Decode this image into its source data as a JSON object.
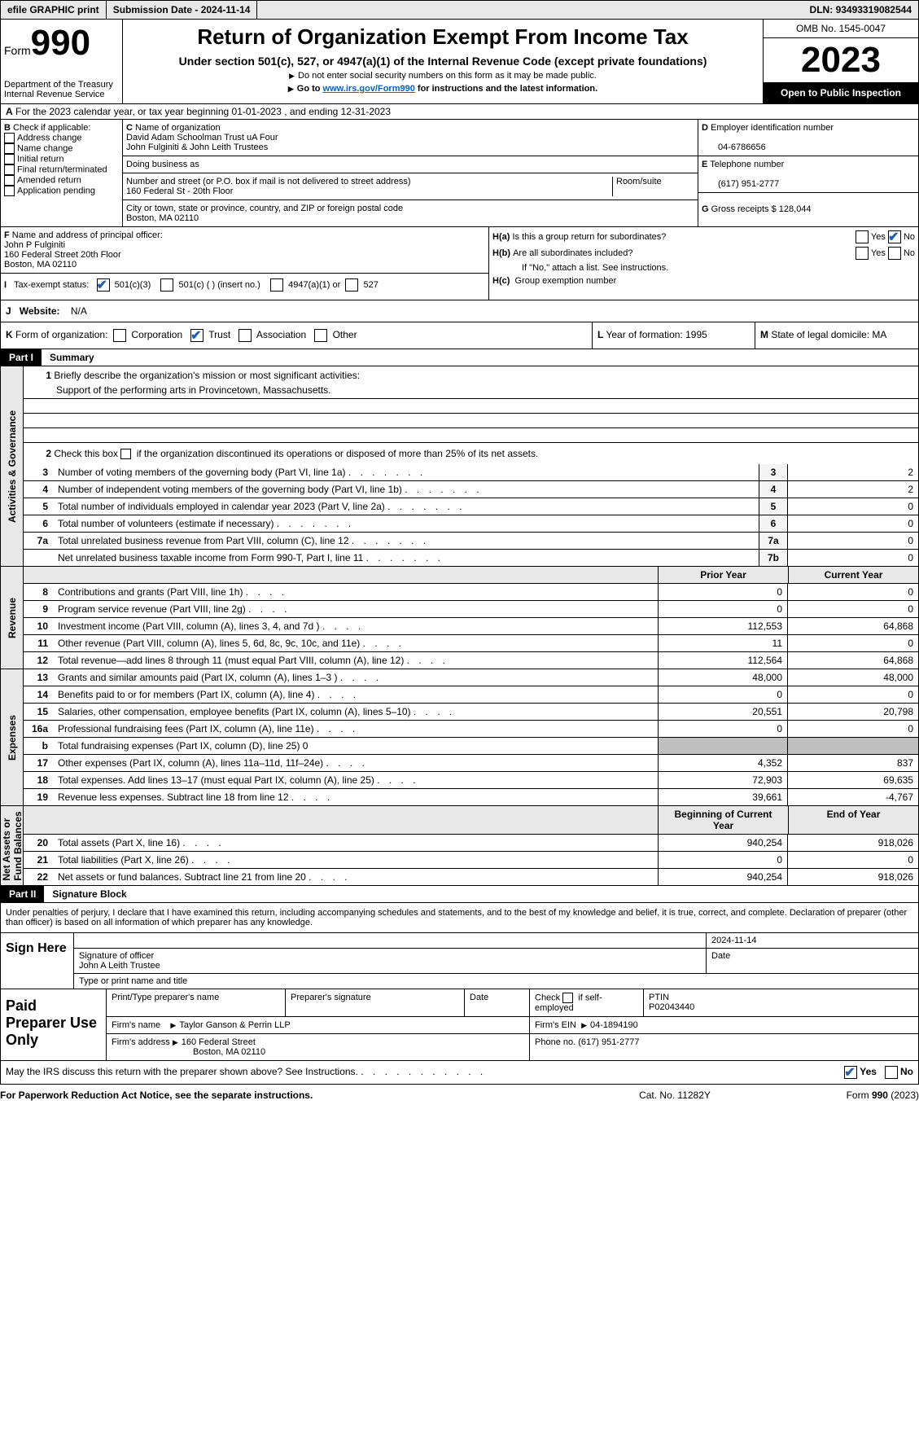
{
  "top": {
    "efile": "efile GRAPHIC print",
    "submission": "Submission Date - 2024-11-14",
    "dln_label": "DLN:",
    "dln": "93493319082544"
  },
  "header": {
    "form_label": "Form",
    "form_num": "990",
    "dept": "Department of the Treasury\nInternal Revenue Service",
    "title": "Return of Organization Exempt From Income Tax",
    "sub1": "Under section 501(c), 527, or 4947(a)(1) of the Internal Revenue Code (except private foundations)",
    "sub2": "Do not enter social security numbers on this form as it may be made public.",
    "sub3_pre": "Go to ",
    "sub3_link": "www.irs.gov/Form990",
    "sub3_post": " for instructions and the latest information.",
    "omb": "OMB No. 1545-0047",
    "year": "2023",
    "inspection": "Open to Public Inspection"
  },
  "section_a": "For the 2023 calendar year, or tax year beginning 01-01-2023    , and ending 12-31-2023",
  "box_b": {
    "label": "Check if applicable:",
    "items": [
      "Address change",
      "Name change",
      "Initial return",
      "Final return/terminated",
      "Amended return",
      "Application pending"
    ]
  },
  "box_c": {
    "name_label": "Name of organization",
    "name1": "David Adam Schoolman Trust uA Four",
    "name2": "John Fulginiti & John Leith Trustees",
    "dba_label": "Doing business as",
    "addr_label": "Number and street (or P.O. box if mail is not delivered to street address)",
    "room_label": "Room/suite",
    "addr": "160 Federal St - 20th Floor",
    "city_label": "City or town, state or province, country, and ZIP or foreign postal code",
    "city": "Boston, MA  02110"
  },
  "box_d": {
    "ein_label": "Employer identification number",
    "ein": "04-6786656",
    "phone_label": "Telephone number",
    "phone": "(617) 951-2777",
    "gross_label": "Gross receipts $",
    "gross": "128,044"
  },
  "box_f": {
    "label": "Name and address of principal officer:",
    "name": "John P Fulginiti",
    "addr1": "160 Federal Street 20th Floor",
    "addr2": "Boston, MA  02110"
  },
  "box_h": {
    "ha": "Is this a group return for subordinates?",
    "hb": "Are all subordinates included?",
    "note": "If \"No,\" attach a list. See instructions.",
    "hc": "Group exemption number",
    "yes": "Yes",
    "no": "No"
  },
  "status": {
    "label": "Tax-exempt status:",
    "opt1": "501(c)(3)",
    "opt2": "501(c) (   ) (insert no.)",
    "opt3": "4947(a)(1) or",
    "opt4": "527"
  },
  "j": {
    "label": "Website:",
    "val": "N/A"
  },
  "k": {
    "label": "Form of organization:",
    "opts": [
      "Corporation",
      "Trust",
      "Association",
      "Other"
    ]
  },
  "l": {
    "label": "Year of formation:",
    "val": "1995"
  },
  "m": {
    "label": "State of legal domicile:",
    "val": "MA"
  },
  "parts": {
    "p1": "Part I",
    "p1_title": "Summary",
    "p2": "Part II",
    "p2_title": "Signature Block"
  },
  "vlabels": {
    "gov": "Activities & Governance",
    "rev": "Revenue",
    "exp": "Expenses",
    "net": "Net Assets or\nFund Balances"
  },
  "summary": {
    "l1": "Briefly describe the organization's mission or most significant activities:",
    "mission": "Support of the performing arts in Provincetown, Massachusetts.",
    "l2": "Check this box       if the organization discontinued its operations or disposed of more than 25% of its net assets.",
    "rows_gov": [
      {
        "n": "3",
        "d": "Number of voting members of the governing body (Part VI, line 1a)",
        "col": "3",
        "v": "2"
      },
      {
        "n": "4",
        "d": "Number of independent voting members of the governing body (Part VI, line 1b)",
        "col": "4",
        "v": "2"
      },
      {
        "n": "5",
        "d": "Total number of individuals employed in calendar year 2023 (Part V, line 2a)",
        "col": "5",
        "v": "0"
      },
      {
        "n": "6",
        "d": "Total number of volunteers (estimate if necessary)",
        "col": "6",
        "v": "0"
      },
      {
        "n": "7a",
        "d": "Total unrelated business revenue from Part VIII, column (C), line 12",
        "col": "7a",
        "v": "0"
      },
      {
        "n": "",
        "d": "Net unrelated business taxable income from Form 990-T, Part I, line 11",
        "col": "7b",
        "v": "0"
      }
    ],
    "col_hdr_prior": "Prior Year",
    "col_hdr_current": "Current Year",
    "rows_rev": [
      {
        "n": "8",
        "d": "Contributions and grants (Part VIII, line 1h)",
        "p": "0",
        "c": "0"
      },
      {
        "n": "9",
        "d": "Program service revenue (Part VIII, line 2g)",
        "p": "0",
        "c": "0"
      },
      {
        "n": "10",
        "d": "Investment income (Part VIII, column (A), lines 3, 4, and 7d )",
        "p": "112,553",
        "c": "64,868"
      },
      {
        "n": "11",
        "d": "Other revenue (Part VIII, column (A), lines 5, 6d, 8c, 9c, 10c, and 11e)",
        "p": "11",
        "c": "0"
      },
      {
        "n": "12",
        "d": "Total revenue—add lines 8 through 11 (must equal Part VIII, column (A), line 12)",
        "p": "112,564",
        "c": "64,868"
      }
    ],
    "rows_exp": [
      {
        "n": "13",
        "d": "Grants and similar amounts paid (Part IX, column (A), lines 1–3 )",
        "p": "48,000",
        "c": "48,000"
      },
      {
        "n": "14",
        "d": "Benefits paid to or for members (Part IX, column (A), line 4)",
        "p": "0",
        "c": "0"
      },
      {
        "n": "15",
        "d": "Salaries, other compensation, employee benefits (Part IX, column (A), lines 5–10)",
        "p": "20,551",
        "c": "20,798"
      },
      {
        "n": "16a",
        "d": "Professional fundraising fees (Part IX, column (A), line 11e)",
        "p": "0",
        "c": "0"
      },
      {
        "n": "b",
        "d": "Total fundraising expenses (Part IX, column (D), line 25) 0",
        "p": "",
        "c": "",
        "shade": true
      },
      {
        "n": "17",
        "d": "Other expenses (Part IX, column (A), lines 11a–11d, 11f–24e)",
        "p": "4,352",
        "c": "837"
      },
      {
        "n": "18",
        "d": "Total expenses. Add lines 13–17 (must equal Part IX, column (A), line 25)",
        "p": "72,903",
        "c": "69,635"
      },
      {
        "n": "19",
        "d": "Revenue less expenses. Subtract line 18 from line 12",
        "p": "39,661",
        "c": "-4,767"
      }
    ],
    "col_hdr_begin": "Beginning of Current Year",
    "col_hdr_end": "End of Year",
    "rows_net": [
      {
        "n": "20",
        "d": "Total assets (Part X, line 16)",
        "p": "940,254",
        "c": "918,026"
      },
      {
        "n": "21",
        "d": "Total liabilities (Part X, line 26)",
        "p": "0",
        "c": "0"
      },
      {
        "n": "22",
        "d": "Net assets or fund balances. Subtract line 21 from line 20",
        "p": "940,254",
        "c": "918,026"
      }
    ]
  },
  "sig_declaration": "Under penalties of perjury, I declare that I have examined this return, including accompanying schedules and statements, and to the best of my knowledge and belief, it is true, correct, and complete. Declaration of preparer (other than officer) is based on all information of which preparer has any knowledge.",
  "sign": {
    "here": "Sign Here",
    "sig_officer": "Signature of officer",
    "officer": "John A Leith Trustee",
    "type_name": "Type or print name and title",
    "date_label": "Date",
    "date": "2024-11-14"
  },
  "prep": {
    "title": "Paid Preparer Use Only",
    "print_name": "Print/Type preparer's name",
    "prep_sig": "Preparer's signature",
    "date": "Date",
    "check_self": "Check       if self-employed",
    "ptin_label": "PTIN",
    "ptin": "P02043440",
    "firm_name_label": "Firm's name",
    "firm_name": "Taylor Ganson & Perrin LLP",
    "firm_ein_label": "Firm's EIN",
    "firm_ein": "04-1894190",
    "firm_addr_label": "Firm's address",
    "firm_addr1": "160 Federal Street",
    "firm_addr2": "Boston, MA  02110",
    "phone_label": "Phone no.",
    "phone": "(617) 951-2777"
  },
  "discuss": "May the IRS discuss this return with the preparer shown above? See Instructions.",
  "footer": {
    "l": "For Paperwork Reduction Act Notice, see the separate instructions.",
    "c": "Cat. No. 11282Y",
    "r": "Form 990 (2023)"
  },
  "letters": {
    "A": "A",
    "B": "B",
    "C": "C",
    "D": "D",
    "E": "E",
    "F": "F",
    "G": "G",
    "I": "I",
    "J": "J",
    "K": "K",
    "L": "L",
    "M": "M",
    "Ha": "H(a)",
    "Hb": "H(b)",
    "Hc": "H(c)"
  }
}
